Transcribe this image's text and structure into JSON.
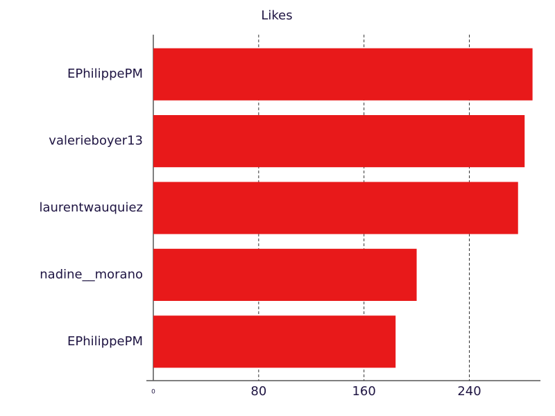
{
  "chart_data": {
    "type": "bar",
    "orientation": "horizontal",
    "title": "Likes",
    "categories": [
      "EPhilippePM",
      "valerieboyer13",
      "laurentwauquiez",
      "nadine__morano",
      "EPhilippePM"
    ],
    "values": [
      288,
      282,
      277,
      200,
      184
    ],
    "color": "#e8191a",
    "xlim": [
      0,
      294
    ],
    "xticks": [
      0,
      80,
      160,
      240
    ],
    "grid": true
  }
}
